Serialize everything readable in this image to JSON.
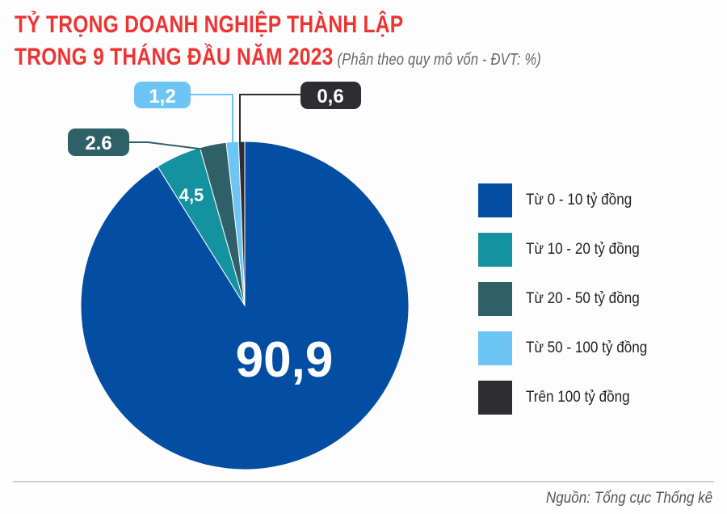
{
  "title": {
    "line1": "TỶ TRỌNG DOANH NGHIỆP THÀNH LẬP",
    "line2": "TRONG 9 THÁNG ĐẦU NĂM 2023",
    "subtitle": "(Phân theo quy mô vốn - ĐVT: %)"
  },
  "source": "Nguồn: Tổng cục Thống kê",
  "colors": {
    "title": "#ee3333"
  },
  "chart_data": {
    "type": "pie",
    "title": "TỶ TRỌNG DOANH NGHIỆP THÀNH LẬP TRONG 9 THÁNG ĐẦU NĂM 2023",
    "unit": "%",
    "start": "12 o'clock, clockwise",
    "legend_position": "right",
    "slices": [
      {
        "name": "Từ 0 - 10 tỷ đồng",
        "value": 90.9,
        "label": "90,9",
        "color": "#034ea2"
      },
      {
        "name": "Từ 10 - 20 tỷ đồng",
        "value": 4.5,
        "label": "4,5",
        "color": "#1592a0"
      },
      {
        "name": "Từ 20 - 50 tỷ đồng",
        "value": 2.6,
        "label": "2.6",
        "color": "#2f6068"
      },
      {
        "name": "Từ 50 - 100 tỷ đồng",
        "value": 1.2,
        "label": "1,2",
        "color": "#6cc5f5"
      },
      {
        "name": "Trên 100 tỷ đồng",
        "value": 0.6,
        "label": "0,6",
        "color": "#2e2e32"
      }
    ]
  }
}
